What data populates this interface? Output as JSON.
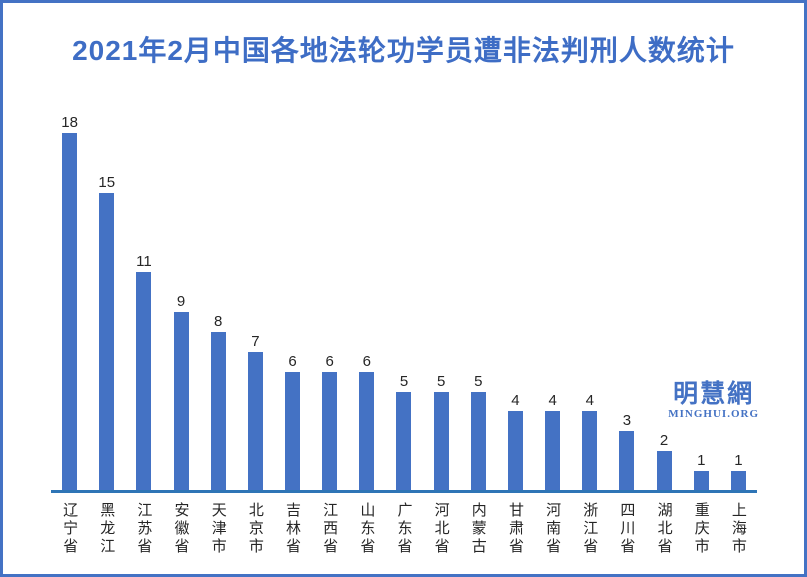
{
  "title": "2021年2月中国各地法轮功学员遭非法判刑人数统计",
  "logo": {
    "cn": "明慧網",
    "en": "MINGHUI.ORG"
  },
  "colors": {
    "bar": "#4472C4",
    "axis": "#2E75B6",
    "title": "#3E6DC5",
    "border": "#4472C4",
    "label": "#262626"
  },
  "chart_data": {
    "type": "bar",
    "title": "2021年2月中国各地法轮功学员遭非法判刑人数统计",
    "categories": [
      "辽宁省",
      "黑龙江",
      "江苏省",
      "安徽省",
      "天津市",
      "北京市",
      "吉林省",
      "江西省",
      "山东省",
      "广东省",
      "河北省",
      "内蒙古",
      "甘肃省",
      "河南省",
      "浙江省",
      "四川省",
      "湖北省",
      "重庆市",
      "上海市"
    ],
    "values": [
      18,
      15,
      11,
      9,
      8,
      7,
      6,
      6,
      6,
      5,
      5,
      5,
      4,
      4,
      4,
      3,
      2,
      1,
      1
    ],
    "xlabel": "",
    "ylabel": "",
    "ylim": [
      0,
      18
    ],
    "grid": false,
    "legend": false,
    "value_labels_shown": true,
    "orientation": "vertical"
  }
}
